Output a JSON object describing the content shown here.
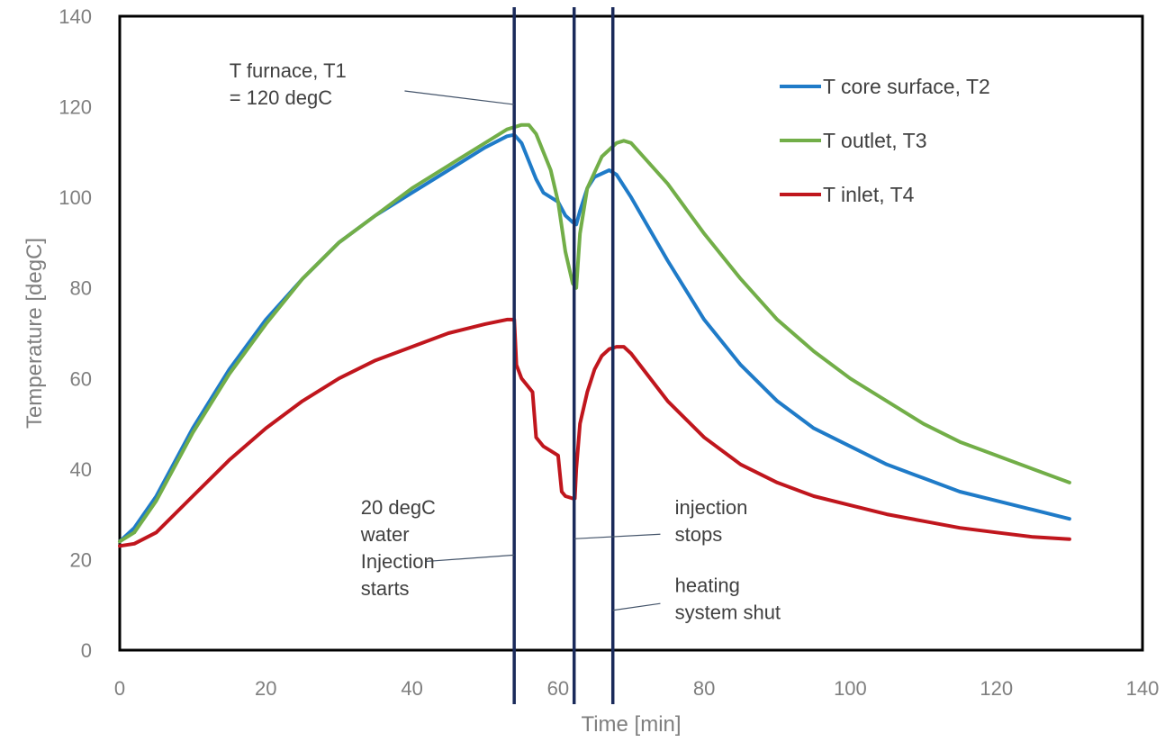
{
  "chart_data": {
    "type": "line",
    "xlabel": "Time [min]",
    "ylabel": "Temperature [degC]",
    "xlim": [
      0,
      140
    ],
    "ylim": [
      0,
      140
    ],
    "x_ticks": [
      0,
      20,
      40,
      60,
      80,
      100,
      120,
      140
    ],
    "y_ticks": [
      0,
      20,
      40,
      60,
      80,
      100,
      120,
      140
    ],
    "grid": false,
    "legend_position": "top-right",
    "series": [
      {
        "name": "T core surface, T2",
        "color": "#1f7bc8",
        "points": [
          [
            0,
            24
          ],
          [
            2,
            27
          ],
          [
            5,
            34
          ],
          [
            10,
            49
          ],
          [
            15,
            62
          ],
          [
            20,
            73
          ],
          [
            25,
            82
          ],
          [
            30,
            90
          ],
          [
            35,
            96
          ],
          [
            40,
            101
          ],
          [
            45,
            106
          ],
          [
            50,
            111
          ],
          [
            53,
            113.5
          ],
          [
            54,
            113.8
          ],
          [
            55,
            112
          ],
          [
            56,
            108
          ],
          [
            57,
            104
          ],
          [
            58,
            101
          ],
          [
            60,
            99
          ],
          [
            61,
            96
          ],
          [
            62,
            94.5
          ],
          [
            62.5,
            94
          ],
          [
            63,
            97
          ],
          [
            64,
            102
          ],
          [
            65,
            104.5
          ],
          [
            67,
            106
          ],
          [
            68,
            105
          ],
          [
            70,
            100
          ],
          [
            75,
            86
          ],
          [
            80,
            73
          ],
          [
            85,
            63
          ],
          [
            90,
            55
          ],
          [
            95,
            49
          ],
          [
            100,
            45
          ],
          [
            105,
            41
          ],
          [
            110,
            38
          ],
          [
            115,
            35
          ],
          [
            120,
            33
          ],
          [
            125,
            31
          ],
          [
            130,
            29
          ]
        ]
      },
      {
        "name": "T outlet, T3",
        "color": "#72ae48",
        "points": [
          [
            0,
            24
          ],
          [
            2,
            26
          ],
          [
            5,
            33
          ],
          [
            10,
            48
          ],
          [
            15,
            61
          ],
          [
            20,
            72
          ],
          [
            25,
            82
          ],
          [
            30,
            90
          ],
          [
            35,
            96
          ],
          [
            40,
            102
          ],
          [
            45,
            107
          ],
          [
            50,
            112
          ],
          [
            53,
            115
          ],
          [
            55,
            116
          ],
          [
            56,
            116
          ],
          [
            57,
            114
          ],
          [
            58,
            110
          ],
          [
            59,
            106
          ],
          [
            60,
            99
          ],
          [
            61,
            88
          ],
          [
            62,
            81
          ],
          [
            62.5,
            80
          ],
          [
            63,
            92
          ],
          [
            64,
            102
          ],
          [
            66,
            109
          ],
          [
            68,
            112
          ],
          [
            69,
            112.5
          ],
          [
            70,
            112
          ],
          [
            75,
            103
          ],
          [
            80,
            92
          ],
          [
            85,
            82
          ],
          [
            90,
            73
          ],
          [
            95,
            66
          ],
          [
            100,
            60
          ],
          [
            105,
            55
          ],
          [
            110,
            50
          ],
          [
            115,
            46
          ],
          [
            120,
            43
          ],
          [
            125,
            40
          ],
          [
            130,
            37
          ]
        ]
      },
      {
        "name": "T inlet, T4",
        "color": "#c0161d",
        "points": [
          [
            0,
            23
          ],
          [
            2,
            23.5
          ],
          [
            5,
            26
          ],
          [
            10,
            34
          ],
          [
            15,
            42
          ],
          [
            20,
            49
          ],
          [
            25,
            55
          ],
          [
            30,
            60
          ],
          [
            35,
            64
          ],
          [
            40,
            67
          ],
          [
            45,
            70
          ],
          [
            50,
            72
          ],
          [
            53,
            73
          ],
          [
            54,
            73
          ],
          [
            54.3,
            63
          ],
          [
            55,
            60
          ],
          [
            56,
            58
          ],
          [
            56.5,
            57
          ],
          [
            57,
            47
          ],
          [
            58,
            45
          ],
          [
            59,
            44
          ],
          [
            60,
            43
          ],
          [
            60.5,
            35
          ],
          [
            61,
            34
          ],
          [
            62,
            33.5
          ],
          [
            62.3,
            33.5
          ],
          [
            62.5,
            40
          ],
          [
            63,
            50
          ],
          [
            64,
            57
          ],
          [
            65,
            62
          ],
          [
            66,
            65
          ],
          [
            67,
            66.5
          ],
          [
            68,
            67
          ],
          [
            69,
            67
          ],
          [
            70,
            65.5
          ],
          [
            75,
            55
          ],
          [
            80,
            47
          ],
          [
            85,
            41
          ],
          [
            90,
            37
          ],
          [
            95,
            34
          ],
          [
            100,
            32
          ],
          [
            105,
            30
          ],
          [
            110,
            28.5
          ],
          [
            115,
            27
          ],
          [
            120,
            26
          ],
          [
            125,
            25
          ],
          [
            130,
            24.5
          ]
        ]
      }
    ],
    "vertical_lines": [
      {
        "x": 54,
        "color": "#1a2a5a"
      },
      {
        "x": 62.2,
        "color": "#1a2a5a"
      },
      {
        "x": 67.5,
        "color": "#1a2a5a"
      }
    ],
    "annotations": [
      {
        "lines": [
          "T furnace, T1",
          "= 120 degC"
        ],
        "text_x": 15,
        "text_y": 126.5,
        "anchor": "start",
        "leader": [
          [
            39,
            123.5
          ],
          [
            54,
            120.5
          ]
        ]
      },
      {
        "lines": [
          "20 degC",
          "water",
          "Injection",
          "starts"
        ],
        "text_x": 33,
        "text_y": 30,
        "anchor": "start",
        "leader": [
          [
            42,
            19.6
          ],
          [
            54,
            21
          ]
        ]
      },
      {
        "lines": [
          "injection",
          "stops"
        ],
        "text_x": 76,
        "text_y": 30,
        "anchor": "start",
        "leader": [
          [
            74,
            25.6
          ],
          [
            62.2,
            24.6
          ]
        ]
      },
      {
        "lines": [
          "heating",
          "system shut"
        ],
        "text_x": 76,
        "text_y": 12.8,
        "anchor": "start",
        "leader": [
          [
            74,
            10.3
          ],
          [
            67.5,
            8.8
          ]
        ]
      }
    ]
  }
}
